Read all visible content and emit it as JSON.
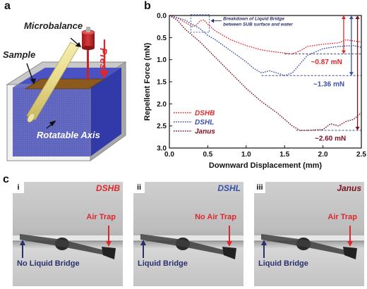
{
  "panel_a": {
    "label": "a",
    "microbalance": "Microbalance",
    "press": "Press",
    "sample": "Sample",
    "axis": "Rotatable Axis"
  },
  "panel_b": {
    "label": "b",
    "annotation": "Breakdown of Liquid Bridge between SUB surface and water",
    "annotation_line1": "Breakdown of Liquid Bridge",
    "annotation_line2": "between SUB surface and water",
    "force_labels": [
      "~0.87 mN",
      "~1.36 mN",
      "~2.60 mN"
    ]
  },
  "chart_data": {
    "type": "line",
    "xlabel": "Downward Displacement (mm)",
    "ylabel": "Repellent Force (mN)",
    "xlim": [
      0,
      2.5
    ],
    "ylim": [
      0,
      3.0
    ],
    "y_inverted": true,
    "x_ticks": [
      "0.0",
      "0.5",
      "1.0",
      "1.5",
      "2.0",
      "2.5"
    ],
    "y_ticks": [
      "0.0",
      "0.5",
      "1.0",
      "1.5",
      "2.0",
      "2.5",
      "3.0"
    ],
    "legend_position": "bottom-left",
    "series": [
      {
        "name": "DSHB",
        "color": "#e0262b",
        "x": [
          0,
          0.1,
          0.2,
          0.3,
          0.35,
          0.4,
          0.45,
          0.5,
          0.6,
          0.8,
          1.0,
          1.2,
          1.4,
          1.6,
          1.7,
          1.8,
          2.0,
          2.2,
          2.3,
          2.5
        ],
        "y": [
          0,
          0.05,
          0.15,
          0.25,
          0.22,
          0.12,
          0.1,
          0.2,
          0.35,
          0.55,
          0.68,
          0.78,
          0.83,
          0.87,
          0.8,
          0.7,
          0.65,
          0.62,
          0.55,
          0.6
        ]
      },
      {
        "name": "DSHL",
        "color": "#3a4fa8",
        "x": [
          0,
          0.1,
          0.2,
          0.3,
          0.4,
          0.5,
          0.6,
          0.8,
          1.0,
          1.1,
          1.2,
          1.3,
          1.4,
          1.5,
          1.6,
          1.7,
          1.8,
          2.0,
          2.2,
          2.4,
          2.5
        ],
        "y": [
          0,
          0.05,
          0.1,
          0.2,
          0.3,
          0.45,
          0.55,
          0.8,
          1.05,
          1.2,
          1.3,
          1.25,
          1.3,
          1.36,
          1.3,
          1.1,
          0.9,
          0.75,
          0.7,
          0.68,
          0.72
        ]
      },
      {
        "name": "Janus",
        "color": "#7a1020",
        "x": [
          0,
          0.1,
          0.2,
          0.4,
          0.6,
          0.8,
          1.0,
          1.2,
          1.4,
          1.5,
          1.6,
          1.7,
          1.8,
          2.0,
          2.1,
          2.2,
          2.3,
          2.4,
          2.5
        ],
        "y": [
          0,
          0.1,
          0.3,
          0.6,
          0.95,
          1.3,
          1.65,
          1.95,
          2.2,
          2.35,
          2.5,
          2.6,
          2.6,
          2.58,
          2.45,
          2.5,
          2.4,
          2.35,
          2.2
        ]
      }
    ]
  },
  "panel_c": {
    "label": "c",
    "images": [
      {
        "roman": "i",
        "material": "DSHB",
        "material_color": "#e0262b",
        "air": "Air Trap",
        "bridge": "No Liquid Bridge"
      },
      {
        "roman": "ii",
        "material": "DSHL",
        "material_color": "#3a4fa8",
        "air": "No Air Trap",
        "bridge": "Liquid Bridge"
      },
      {
        "roman": "iii",
        "material": "Janus",
        "material_color": "#7a1020",
        "air": "Air Trap",
        "bridge": "Liquid Bridge"
      }
    ]
  },
  "colors": {
    "red": "#e0262b",
    "blue": "#3a4fa8",
    "navy": "#2a2f6e",
    "darkred": "#7a1020"
  }
}
